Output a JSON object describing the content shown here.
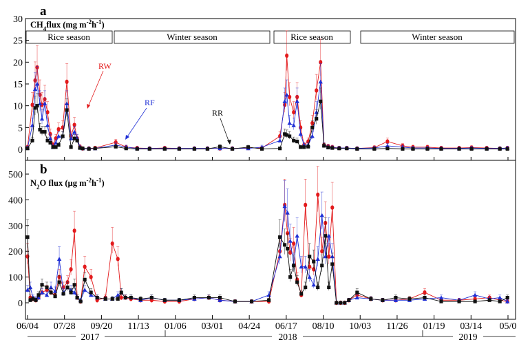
{
  "panel_a": {
    "letter": "a",
    "title_text": "CH",
    "title_sub": "4",
    "title_rest": "flux (mg m",
    "title_unit_sup": "-2",
    "title_unit_mid": "h",
    "title_unit_sup2": "-1",
    "title_end": ")",
    "seasons": [
      "Rice season",
      "Winter  season",
      "Rice season",
      "Winter  season"
    ],
    "labels": {
      "RW": "RW",
      "RF": "RF",
      "RR": "RR"
    },
    "colors": {
      "RW": "#e31a1c",
      "RF": "#1f2fd6",
      "RR": "#111111"
    }
  },
  "panel_b": {
    "letter": "b",
    "title_text": "N",
    "title_sub": "2",
    "title_rest": "O flux (µg m",
    "title_unit_sup": "-2",
    "title_unit_mid": "h",
    "title_unit_sup2": "-1",
    "title_end": ")"
  },
  "x_ticks": [
    "06/04",
    "07/28",
    "09/20",
    "11/13",
    "01/06",
    "03/01",
    "04/24",
    "06/17",
    "08/10",
    "10/03",
    "11/26",
    "01/19",
    "03/14",
    "05/0"
  ],
  "years": [
    "2017",
    "2018",
    "2019"
  ],
  "chart_data": [
    {
      "type": "line",
      "title": "CH4flux (mg m-2h-1)",
      "ylim": [
        0,
        30
      ],
      "yticks": [
        0,
        5,
        10,
        15,
        20,
        25,
        30
      ],
      "x": [
        "2017-06-04",
        "2017-06-11",
        "2017-06-15",
        "2017-06-18",
        "2017-06-22",
        "2017-06-25",
        "2017-06-29",
        "2017-07-03",
        "2017-07-07",
        "2017-07-11",
        "2017-07-15",
        "2017-07-19",
        "2017-07-25",
        "2017-07-31",
        "2017-08-06",
        "2017-08-11",
        "2017-08-15",
        "2017-08-19",
        "2017-08-23",
        "2017-09-01",
        "2017-09-10",
        "2017-10-10",
        "2017-10-25",
        "2017-11-10",
        "2017-11-28",
        "2017-12-20",
        "2018-01-10",
        "2018-02-01",
        "2018-02-20",
        "2018-03-10",
        "2018-03-28",
        "2018-04-20",
        "2018-05-10",
        "2018-06-05",
        "2018-06-12",
        "2018-06-15",
        "2018-06-19",
        "2018-06-25",
        "2018-06-30",
        "2018-07-05",
        "2018-07-10",
        "2018-07-16",
        "2018-07-22",
        "2018-07-28",
        "2018-08-03",
        "2018-08-08",
        "2018-08-14",
        "2018-08-20",
        "2018-08-30",
        "2018-09-10",
        "2018-09-25",
        "2018-10-20",
        "2018-11-08",
        "2018-11-30",
        "2018-12-15",
        "2019-01-05",
        "2019-01-25",
        "2019-02-20",
        "2019-03-10",
        "2019-04-01",
        "2019-04-20",
        "2019-05-01"
      ],
      "series": [
        {
          "name": "RW",
          "values": [
            0.5,
            10.2,
            15.8,
            18.8,
            12.5,
            10.2,
            11.5,
            8.5,
            3.5,
            1.0,
            2.5,
            4.6,
            5.0,
            15.5,
            3.0,
            5.6,
            2.5,
            0.6,
            0.2,
            0.2,
            0.3,
            1.6,
            0.5,
            0.3,
            0.2,
            0.3,
            0.2,
            0.2,
            0.2,
            0.2,
            0.2,
            0.3,
            0.3,
            3.0,
            10.2,
            21.5,
            12.0,
            8.5,
            12.0,
            5.0,
            1.0,
            1.8,
            6.0,
            13.5,
            20.0,
            1.0,
            0.7,
            0.5,
            0.3,
            0.3,
            0.2,
            0.4,
            1.8,
            0.8,
            0.5,
            0.5,
            0.3,
            0.3,
            0.4,
            0.3,
            0.2,
            0.3
          ]
        },
        {
          "name": "RF",
          "values": [
            0.3,
            5.5,
            13.8,
            15.0,
            10.5,
            7.0,
            10.5,
            5.5,
            2.5,
            0.5,
            1.5,
            3.0,
            3.0,
            10.5,
            2.5,
            4.0,
            2.5,
            0.5,
            0.2,
            0.2,
            0.2,
            1.0,
            0.5,
            0.2,
            0.2,
            0.2,
            0.2,
            0.2,
            0.2,
            0.2,
            0.2,
            0.2,
            0.5,
            2.0,
            11.0,
            12.5,
            6.0,
            5.5,
            11.0,
            3.5,
            1.0,
            1.0,
            3.0,
            8.5,
            15.5,
            1.0,
            0.6,
            0.4,
            0.3,
            0.3,
            0.2,
            0.3,
            0.8,
            0.5,
            0.3,
            0.3,
            0.2,
            0.2,
            0.3,
            0.2,
            0.2,
            0.3
          ]
        },
        {
          "name": "RR",
          "values": [
            0.2,
            2.0,
            9.5,
            10.0,
            4.5,
            4.0,
            4.0,
            2.0,
            1.5,
            0.5,
            0.5,
            1.0,
            3.0,
            9.0,
            0.5,
            2.5,
            2.0,
            0.3,
            0.2,
            0.1,
            0.2,
            0.6,
            0.2,
            0.1,
            0.1,
            0.1,
            0.1,
            0.1,
            0.1,
            0.6,
            0.1,
            0.5,
            0.1,
            0.2,
            3.5,
            3.3,
            3.0,
            2.0,
            1.8,
            0.5,
            0.5,
            0.6,
            5.0,
            7.0,
            11.0,
            0.8,
            0.4,
            0.3,
            0.2,
            0.2,
            0.1,
            0.1,
            0.2,
            0.1,
            0.1,
            0.1,
            0.1,
            0.1,
            0.1,
            0.1,
            0.1,
            0.1
          ]
        }
      ]
    },
    {
      "type": "line",
      "title": "N2O flux (µg m-2h-1)",
      "ylim": [
        -50,
        500
      ],
      "yticks": [
        0,
        100,
        200,
        300,
        400,
        500
      ],
      "xlim": [
        "2017-06-04",
        "2019-05-01"
      ],
      "x": [
        "2017-06-04",
        "2017-06-08",
        "2017-06-12",
        "2017-06-16",
        "2017-06-20",
        "2017-06-25",
        "2017-07-02",
        "2017-07-08",
        "2017-07-14",
        "2017-07-20",
        "2017-07-26",
        "2017-08-01",
        "2017-08-06",
        "2017-08-11",
        "2017-08-15",
        "2017-08-20",
        "2017-08-26",
        "2017-09-04",
        "2017-09-13",
        "2017-09-25",
        "2017-10-05",
        "2017-10-13",
        "2017-10-18",
        "2017-10-24",
        "2017-11-01",
        "2017-11-15",
        "2017-12-01",
        "2017-12-20",
        "2018-01-10",
        "2018-02-01",
        "2018-02-22",
        "2018-03-10",
        "2018-04-01",
        "2018-04-25",
        "2018-05-20",
        "2018-06-05",
        "2018-06-12",
        "2018-06-16",
        "2018-06-20",
        "2018-06-25",
        "2018-06-30",
        "2018-07-06",
        "2018-07-12",
        "2018-07-18",
        "2018-07-24",
        "2018-07-30",
        "2018-08-05",
        "2018-08-10",
        "2018-08-15",
        "2018-08-20",
        "2018-08-26",
        "2018-09-01",
        "2018-09-07",
        "2018-09-13",
        "2018-09-25",
        "2018-10-15",
        "2018-11-01",
        "2018-11-20",
        "2018-12-10",
        "2019-01-01",
        "2019-01-25",
        "2019-02-20",
        "2019-03-15",
        "2019-04-05",
        "2019-04-20",
        "2019-05-01"
      ],
      "series": [
        {
          "name": "RW",
          "values": [
            180,
            20,
            15,
            10,
            20,
            40,
            50,
            40,
            30,
            100,
            60,
            80,
            130,
            280,
            20,
            5,
            140,
            100,
            10,
            20,
            230,
            170,
            20,
            20,
            15,
            10,
            10,
            5,
            5,
            15,
            20,
            10,
            5,
            5,
            5,
            200,
            380,
            270,
            195,
            230,
            90,
            30,
            380,
            140,
            130,
            420,
            200,
            310,
            180,
            370,
            0,
            0,
            0,
            10,
            30,
            15,
            10,
            10,
            15,
            40,
            10,
            10,
            15,
            20,
            10,
            5
          ]
        },
        {
          "name": "RF",
          "values": [
            50,
            60,
            20,
            15,
            20,
            40,
            30,
            60,
            45,
            170,
            40,
            60,
            50,
            40,
            20,
            10,
            50,
            30,
            20,
            15,
            15,
            30,
            40,
            20,
            20,
            10,
            20,
            10,
            10,
            15,
            20,
            10,
            5,
            5,
            30,
            180,
            375,
            350,
            240,
            150,
            260,
            140,
            140,
            100,
            70,
            170,
            340,
            180,
            260,
            180,
            0,
            0,
            0,
            10,
            20,
            15,
            10,
            10,
            10,
            15,
            20,
            10,
            30,
            15,
            20,
            5
          ]
        },
        {
          "name": "RR",
          "values": [
            255,
            10,
            15,
            10,
            30,
            70,
            60,
            40,
            25,
            80,
            35,
            60,
            40,
            70,
            20,
            5,
            90,
            40,
            20,
            15,
            15,
            15,
            40,
            20,
            20,
            15,
            20,
            10,
            10,
            20,
            20,
            20,
            5,
            5,
            10,
            255,
            225,
            210,
            100,
            145,
            80,
            35,
            60,
            180,
            160,
            60,
            145,
            260,
            60,
            150,
            0,
            0,
            0,
            10,
            40,
            15,
            10,
            20,
            15,
            20,
            5,
            5,
            5,
            10,
            5,
            20
          ]
        }
      ]
    }
  ]
}
